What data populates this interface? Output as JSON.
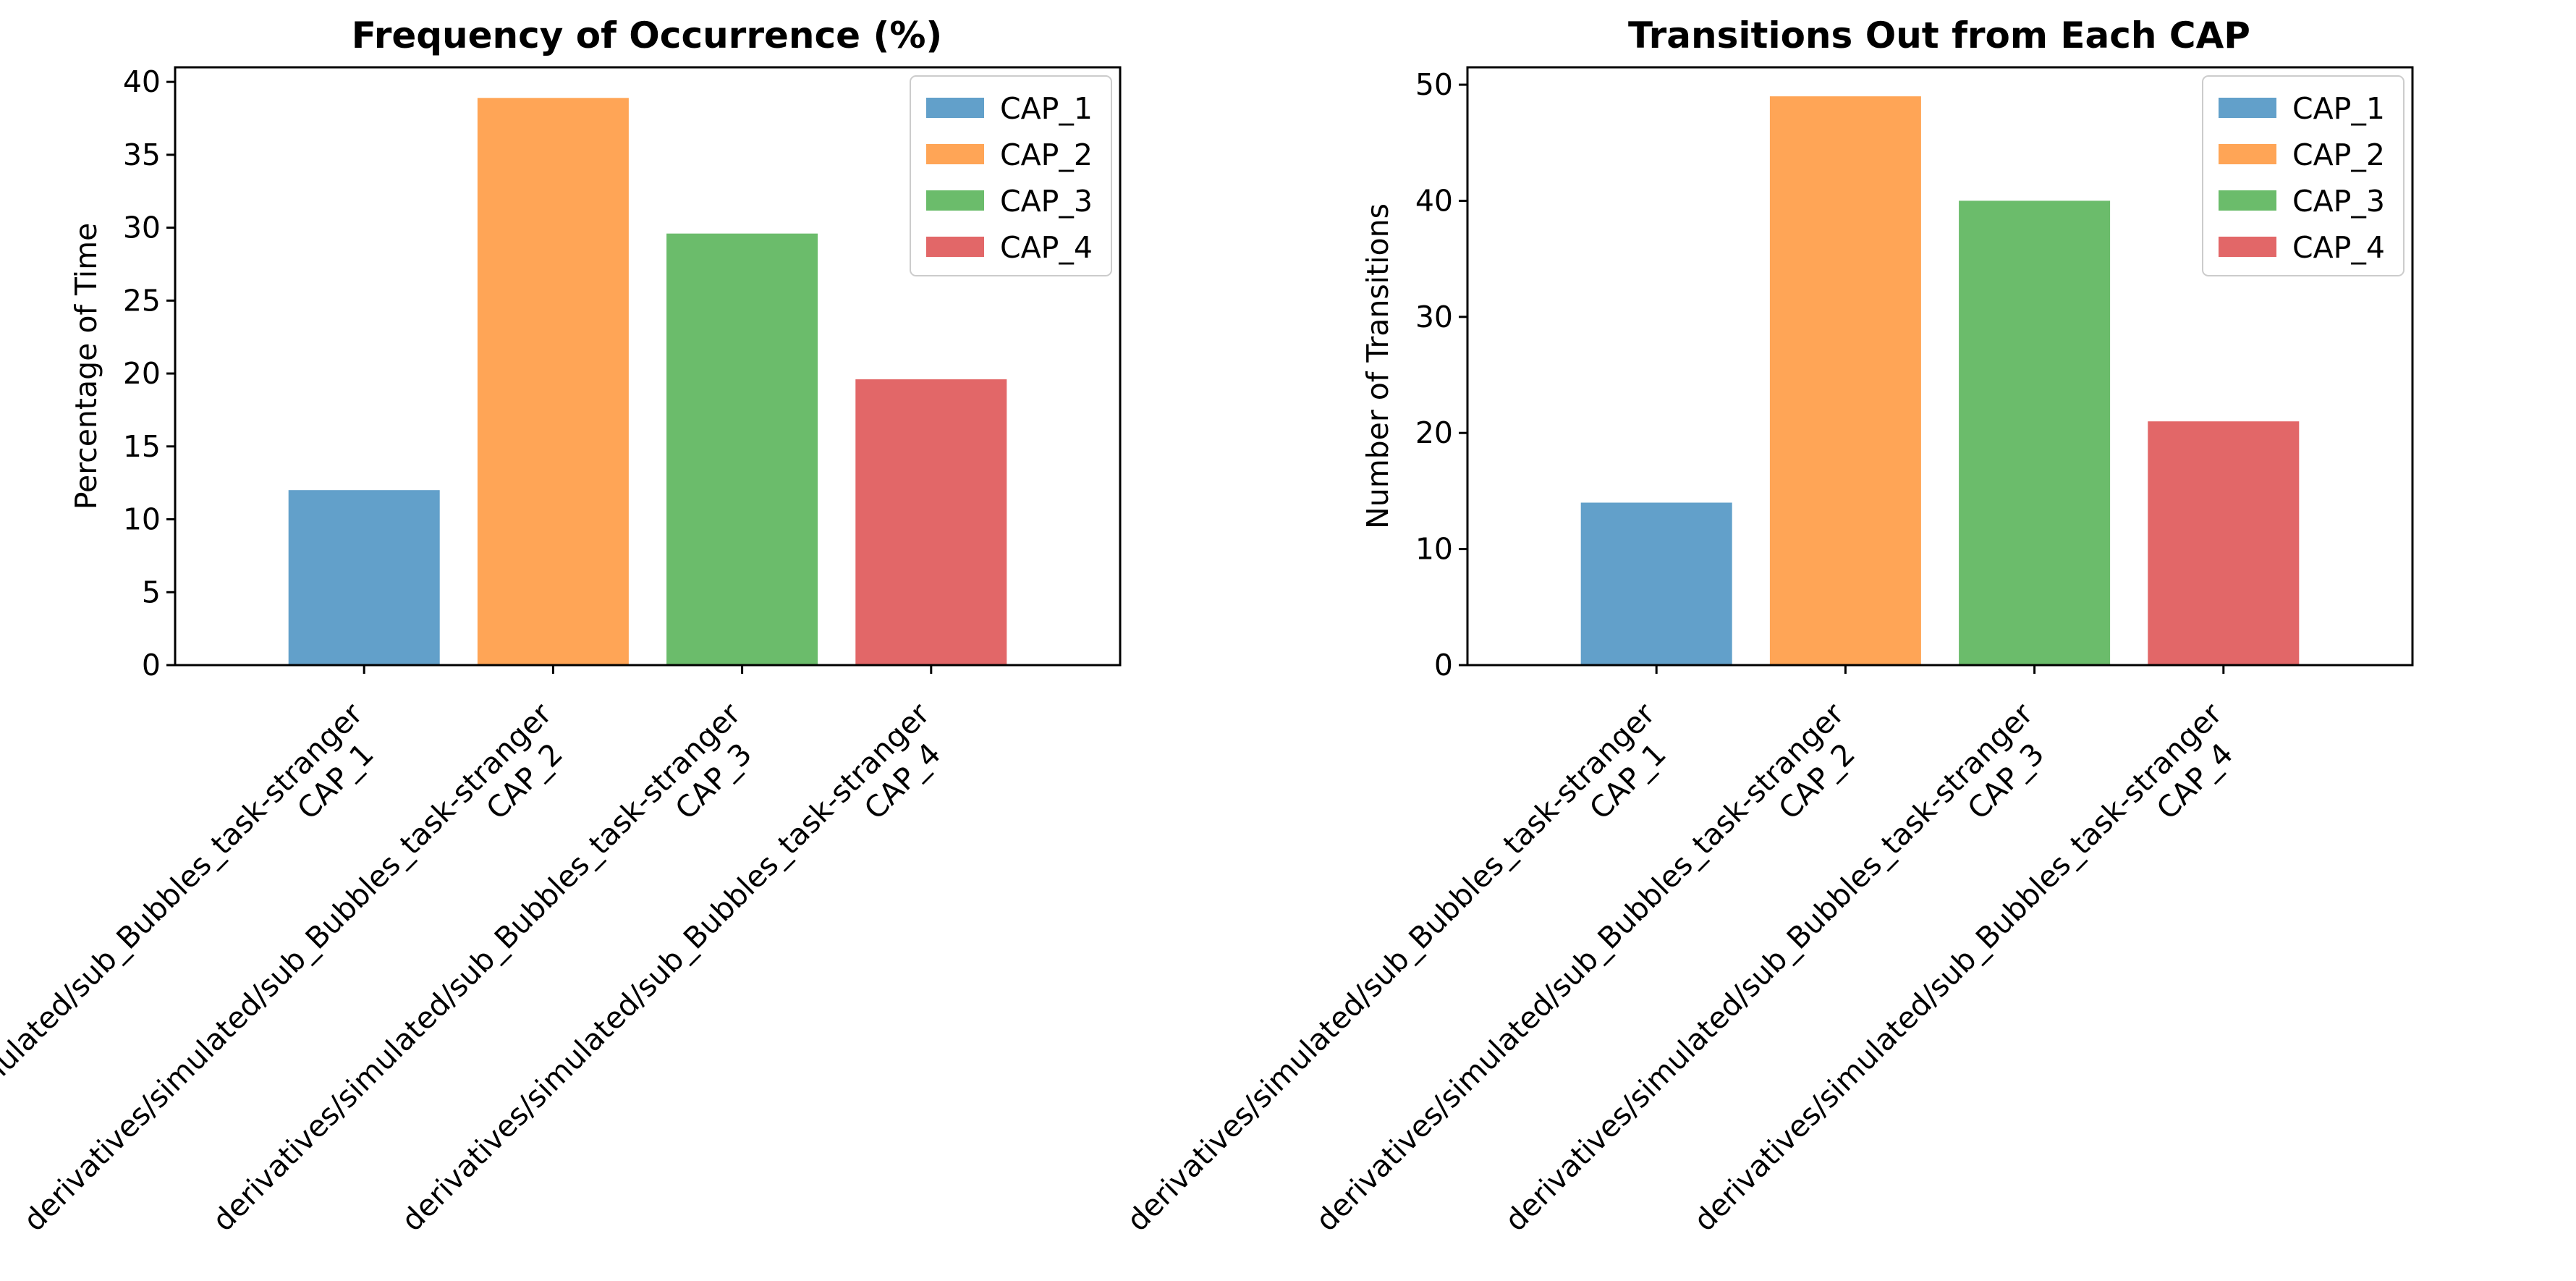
{
  "chart_data": [
    {
      "type": "bar",
      "title": "Frequency of Occurrence (%)",
      "xlabel": "",
      "ylabel": "Percentage of Time",
      "ylim": [
        0,
        41
      ],
      "yticks": [
        0,
        5,
        10,
        15,
        20,
        25,
        30,
        35,
        40
      ],
      "categories": [
        [
          "derivatives/simulated/sub_Bubbles_task-stranger",
          "CAP_1"
        ],
        [
          "derivatives/simulated/sub_Bubbles_task-stranger",
          "CAP_2"
        ],
        [
          "derivatives/simulated/sub_Bubbles_task-stranger",
          "CAP_3"
        ],
        [
          "derivatives/simulated/sub_Bubbles_task-stranger",
          "CAP_4"
        ]
      ],
      "series": [
        {
          "name": "CAP_1",
          "values": [
            12.0,
            null,
            null,
            null
          ],
          "color": "#1f77b4"
        },
        {
          "name": "CAP_2",
          "values": [
            null,
            38.9,
            null,
            null
          ],
          "color": "#ff7f0e"
        },
        {
          "name": "CAP_3",
          "values": [
            null,
            null,
            29.6,
            null
          ],
          "color": "#2ca02c"
        },
        {
          "name": "CAP_4",
          "values": [
            null,
            null,
            null,
            19.6
          ],
          "color": "#d62728"
        }
      ],
      "bar_alpha": 0.7,
      "legend": "top-right",
      "grid": false
    },
    {
      "type": "bar",
      "title": "Transitions Out from Each CAP",
      "xlabel": "",
      "ylabel": "Number of Transitions",
      "ylim": [
        0,
        51.5
      ],
      "yticks": [
        0,
        10,
        20,
        30,
        40,
        50
      ],
      "categories": [
        [
          "derivatives/simulated/sub_Bubbles_task-stranger",
          "CAP_1"
        ],
        [
          "derivatives/simulated/sub_Bubbles_task-stranger",
          "CAP_2"
        ],
        [
          "derivatives/simulated/sub_Bubbles_task-stranger",
          "CAP_3"
        ],
        [
          "derivatives/simulated/sub_Bubbles_task-stranger",
          "CAP_4"
        ]
      ],
      "series": [
        {
          "name": "CAP_1",
          "values": [
            14,
            null,
            null,
            null
          ],
          "color": "#1f77b4"
        },
        {
          "name": "CAP_2",
          "values": [
            null,
            49,
            null,
            null
          ],
          "color": "#ff7f0e"
        },
        {
          "name": "CAP_3",
          "values": [
            null,
            null,
            40,
            null
          ],
          "color": "#2ca02c"
        },
        {
          "name": "CAP_4",
          "values": [
            null,
            null,
            null,
            21
          ],
          "color": "#d62728"
        }
      ],
      "bar_alpha": 0.7,
      "legend": "top-right",
      "grid": false
    }
  ]
}
